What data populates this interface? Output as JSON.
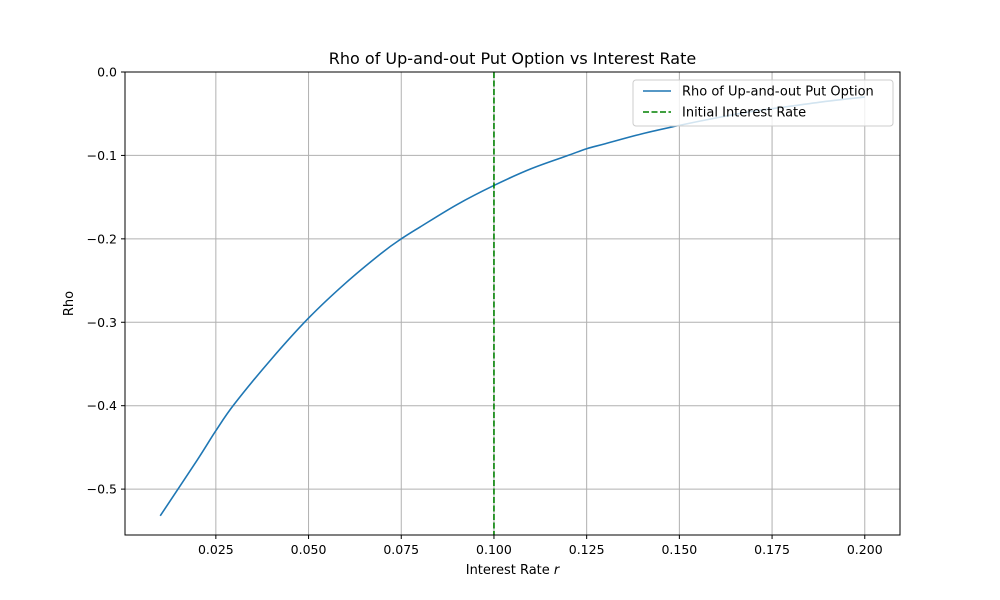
{
  "chart_data": {
    "type": "line",
    "title": "Rho of Up-and-out Put Option vs Interest Rate",
    "xlabel": "Interest Rate ",
    "xlabel_var": "r",
    "ylabel": "Rho",
    "xlim": [
      0.0005,
      0.2095
    ],
    "ylim": [
      -0.555,
      0.0
    ],
    "grid": true,
    "legend_placement": "top-right",
    "x_ticks": [
      0.025,
      0.05,
      0.075,
      0.1,
      0.125,
      0.15,
      0.175,
      0.2
    ],
    "x_tick_labels": [
      "0.025",
      "0.050",
      "0.075",
      "0.100",
      "0.125",
      "0.150",
      "0.175",
      "0.200"
    ],
    "y_ticks": [
      0.0,
      -0.1,
      -0.2,
      -0.3,
      -0.4,
      -0.5
    ],
    "y_tick_labels": [
      "0.0",
      "−0.1",
      "−0.2",
      "−0.3",
      "−0.4",
      "−0.5"
    ],
    "series": [
      {
        "name": "Rho of Up-and-out Put Option",
        "color": "#1f77b4",
        "style": "solid",
        "x": [
          0.01,
          0.02,
          0.025,
          0.03,
          0.04,
          0.05,
          0.06,
          0.07,
          0.075,
          0.08,
          0.09,
          0.1,
          0.11,
          0.12,
          0.125,
          0.13,
          0.14,
          0.15,
          0.16,
          0.17,
          0.175,
          0.18,
          0.19,
          0.2
        ],
        "y": [
          -0.532,
          -0.465,
          -0.43,
          -0.398,
          -0.344,
          -0.295,
          -0.253,
          -0.216,
          -0.2,
          -0.186,
          -0.159,
          -0.136,
          -0.116,
          -0.1,
          -0.092,
          -0.086,
          -0.074,
          -0.064,
          -0.055,
          -0.047,
          -0.044,
          -0.041,
          -0.035,
          -0.03
        ]
      },
      {
        "name": "Initial Interest Rate",
        "color": "#008000",
        "style": "dashed",
        "vline_x": 0.1
      }
    ]
  }
}
